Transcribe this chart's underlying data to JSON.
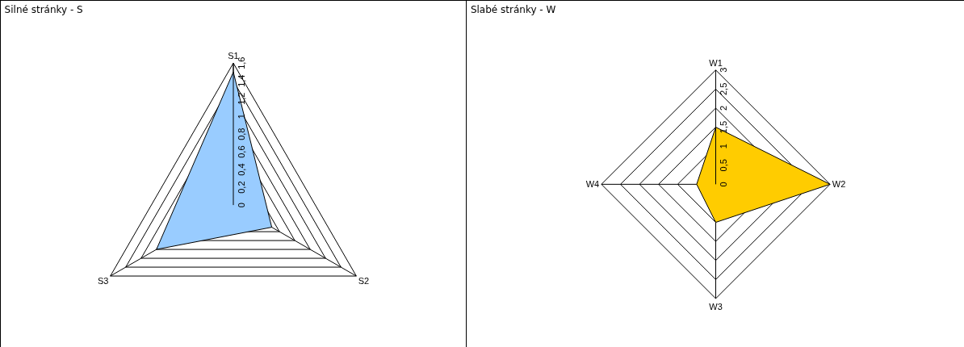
{
  "chart_data": [
    {
      "type": "radar",
      "title": "Silné stránky - S",
      "categories": [
        "S1",
        "S2",
        "S3"
      ],
      "series": [
        {
          "color": "#99ccff",
          "values": [
            1.5,
            0.5,
            1.0
          ]
        }
      ],
      "ylim": [
        0,
        1.6
      ],
      "yticks": [
        0,
        {
          "value": 0.2,
          "label": "0,2"
        },
        {
          "value": 0.4,
          "label": "0,4"
        },
        {
          "value": 0.6,
          "label": "0,6"
        },
        {
          "value": 0.8,
          "label": "0,8"
        },
        1,
        {
          "value": 1.2,
          "label": "1,2"
        },
        {
          "value": 1.4,
          "label": "1,4"
        },
        {
          "value": 1.6,
          "label": "1,6"
        }
      ],
      "grid": true
    },
    {
      "type": "radar",
      "title": "Slabé stránky - W",
      "categories": [
        "W1",
        "W2",
        "W3",
        "W4"
      ],
      "series": [
        {
          "color": "#ffcc00",
          "values": [
            1.5,
            3,
            1.0,
            0.5
          ]
        }
      ],
      "ylim": [
        0,
        3
      ],
      "yticks": [
        0,
        {
          "value": 0.5,
          "label": "0,5"
        },
        1,
        {
          "value": 1.5,
          "label": "1,5"
        },
        2,
        {
          "value": 2.5,
          "label": "2,5"
        },
        3
      ],
      "grid": true
    }
  ]
}
